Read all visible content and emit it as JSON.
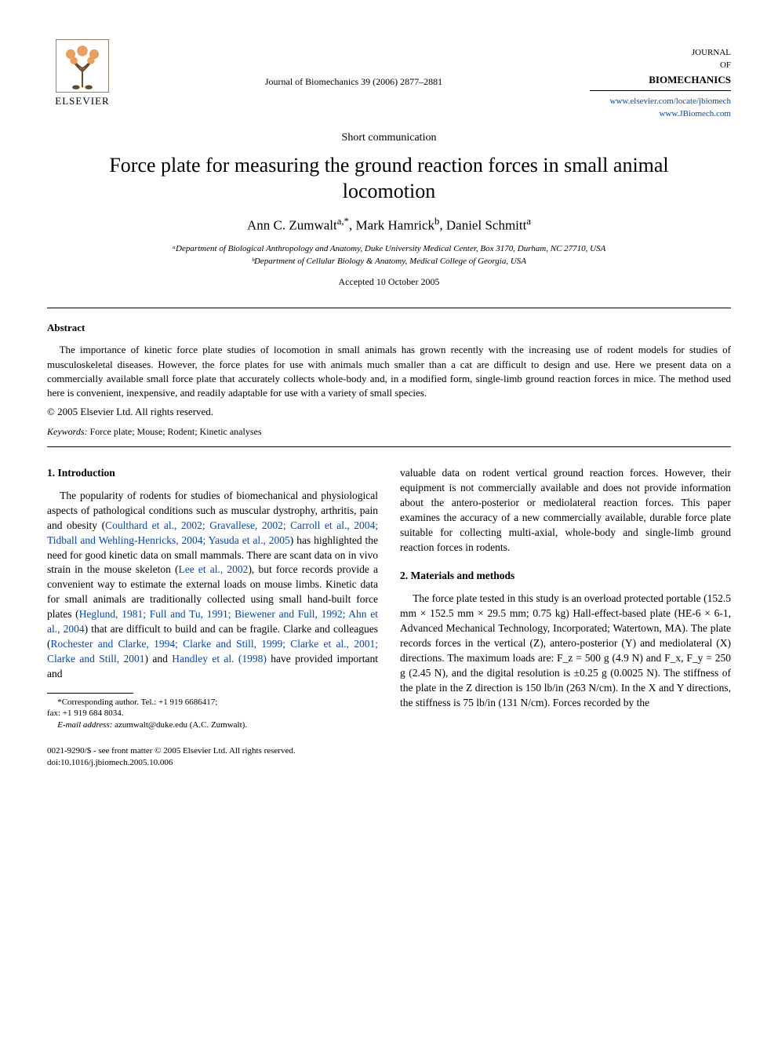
{
  "publisher": {
    "name": "ELSEVIER",
    "logo_alt": "Elsevier tree logo"
  },
  "header": {
    "citation": "Journal of Biomechanics 39 (2006) 2877–2881",
    "journal_line1": "JOURNAL",
    "journal_line2": "OF",
    "journal_line3": "BIOMECHANICS",
    "link1": "www.elsevier.com/locate/jbiomech",
    "link2": "www.JBiomech.com"
  },
  "article": {
    "type": "Short communication",
    "title": "Force plate for measuring the ground reaction forces in small animal locomotion",
    "authors_html": "Ann C. Zumwalt<sup>a,*</sup>, Mark Hamrick<sup>b</sup>, Daniel Schmitt<sup>a</sup>",
    "affil_a": "ᵃDepartment of Biological Anthropology and Anatomy, Duke University Medical Center, Box 3170, Durham, NC 27710, USA",
    "affil_b": "ᵇDepartment of Cellular Biology & Anatomy, Medical College of Georgia, USA",
    "accepted": "Accepted 10 October 2005"
  },
  "abstract": {
    "heading": "Abstract",
    "text": "The importance of kinetic force plate studies of locomotion in small animals has grown recently with the increasing use of rodent models for studies of musculoskeletal diseases. However, the force plates for use with animals much smaller than a cat are difficult to design and use. Here we present data on a commercially available small force plate that accurately collects whole-body and, in a modified form, single-limb ground reaction forces in mice. The method used here is convenient, inexpensive, and readily adaptable for use with a variety of small species.",
    "copyright": "© 2005 Elsevier Ltd. All rights reserved.",
    "keywords_label": "Keywords:",
    "keywords": " Force plate; Mouse; Rodent; Kinetic analyses"
  },
  "sections": {
    "intro_heading": "1. Introduction",
    "intro_p1_a": "The popularity of rodents for studies of biomechanical and physiological aspects of pathological conditions such as muscular dystrophy, arthritis, pain and obesity (",
    "intro_p1_cite1": "Coulthard et al., 2002; Gravallese, 2002; Carroll et al., 2004; Tidball and Wehling-Henricks, 2004; Yasuda et al., 2005",
    "intro_p1_b": ") has highlighted the need for good kinetic data on small mammals. There are scant data on in vivo strain in the mouse skeleton (",
    "intro_p1_cite2": "Lee et al., 2002",
    "intro_p1_c": "), but force records provide a convenient way to estimate the external loads on mouse limbs. Kinetic data for small animals are traditionally collected using small hand-built force plates (",
    "intro_p1_cite3": "Heglund, 1981; Full and Tu, 1991; Biewener and Full, 1992; Ahn et al., 2004",
    "intro_p1_d": ") that are difficult to build and can be fragile. Clarke and colleagues (",
    "intro_p1_cite4": "Rochester and Clarke, 1994; Clarke and Still, 1999; Clarke et al., 2001; Clarke and Still, 2001",
    "intro_p1_e": ") and ",
    "intro_p1_cite5": "Handley et al. (1998)",
    "intro_p1_f": " have provided important and ",
    "intro_p1_g": "valuable data on rodent vertical ground reaction forces. However, their equipment is not commercially available and does not provide information about the antero-posterior or mediolateral reaction forces. This paper examines the accuracy of a new commercially available, durable force plate suitable for collecting multi-axial, whole-body and single-limb ground reaction forces in rodents.",
    "methods_heading": "2. Materials and methods",
    "methods_p1": "The force plate tested in this study is an overload protected portable (152.5 mm × 152.5 mm × 29.5 mm; 0.75 kg) Hall-effect-based plate (HE-6 × 6-1, Advanced Mechanical Technology, Incorporated; Watertown, MA). The plate records forces in the vertical (Z), antero-posterior (Y) and mediolateral (X) directions. The maximum loads are: F_z = 500 g (4.9 N) and F_x, F_y = 250 g (2.45 N), and the digital resolution is ±0.25 g (0.0025 N). The stiffness of the plate in the Z direction is 150 lb/in (263 N/cm). In the X and Y directions, the stiffness is 75 lb/in (131 N/cm). Forces recorded by the"
  },
  "footnote": {
    "corr_label": "*Corresponding author. Tel.: +1 919 6686417;",
    "fax": "fax: +1 919 684 8034.",
    "email_label": "E-mail address:",
    "email": " azumwalt@duke.edu (A.C. Zumwalt)."
  },
  "bottom": {
    "line1": "0021-9290/$ - see front matter © 2005 Elsevier Ltd. All rights reserved.",
    "line2": "doi:10.1016/j.jbiomech.2005.10.006"
  },
  "colors": {
    "link": "#0645ad",
    "text": "#000000",
    "background": "#ffffff",
    "logo_orange": "#e87a3a",
    "logo_outline": "#6b4a2a"
  }
}
